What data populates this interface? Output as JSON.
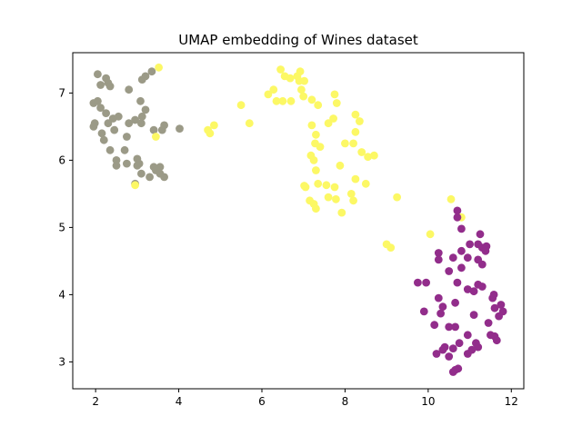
{
  "chart_data": {
    "type": "scatter",
    "title": "UMAP embedding of Wines dataset",
    "xlabel": "",
    "ylabel": "",
    "xlim": [
      1.45,
      12.3
    ],
    "ylim": [
      2.6,
      7.6
    ],
    "xticks": [
      2,
      4,
      6,
      8,
      10,
      12
    ],
    "yticks": [
      3,
      4,
      5,
      6,
      7
    ],
    "grid": false,
    "legend": "none",
    "series": [
      {
        "color": "#9b9a87",
        "points": [
          [
            1.95,
            6.85
          ],
          [
            2.05,
            6.88
          ],
          [
            2.12,
            6.78
          ],
          [
            1.98,
            6.55
          ],
          [
            1.95,
            6.5
          ],
          [
            2.05,
            7.28
          ],
          [
            2.25,
            7.22
          ],
          [
            2.3,
            7.15
          ],
          [
            2.12,
            7.12
          ],
          [
            2.35,
            7.1
          ],
          [
            2.8,
            7.05
          ],
          [
            3.2,
            7.25
          ],
          [
            3.12,
            7.2
          ],
          [
            3.35,
            7.32
          ],
          [
            3.08,
            6.88
          ],
          [
            3.2,
            6.75
          ],
          [
            3.12,
            6.65
          ],
          [
            2.95,
            6.6
          ],
          [
            2.8,
            6.55
          ],
          [
            2.55,
            6.65
          ],
          [
            2.42,
            6.62
          ],
          [
            2.25,
            6.7
          ],
          [
            2.3,
            6.55
          ],
          [
            2.45,
            6.45
          ],
          [
            2.15,
            6.4
          ],
          [
            2.2,
            6.3
          ],
          [
            2.75,
            6.35
          ],
          [
            3.1,
            6.55
          ],
          [
            3.4,
            6.45
          ],
          [
            3.6,
            6.45
          ],
          [
            3.65,
            6.52
          ],
          [
            4.02,
            6.47
          ],
          [
            2.35,
            6.15
          ],
          [
            2.7,
            6.15
          ],
          [
            2.5,
            6.0
          ],
          [
            2.5,
            5.92
          ],
          [
            2.75,
            5.95
          ],
          [
            3.0,
            6.02
          ],
          [
            3.0,
            5.92
          ],
          [
            3.05,
            5.95
          ],
          [
            3.4,
            5.9
          ],
          [
            3.55,
            5.9
          ],
          [
            3.45,
            5.85
          ],
          [
            3.55,
            5.8
          ],
          [
            3.1,
            5.8
          ],
          [
            3.3,
            5.75
          ],
          [
            3.65,
            5.75
          ],
          [
            2.95,
            5.65
          ]
        ]
      },
      {
        "color": "#fcf865",
        "points": [
          [
            3.52,
            7.38
          ],
          [
            3.45,
            6.35
          ],
          [
            2.95,
            5.63
          ],
          [
            4.7,
            6.45
          ],
          [
            4.75,
            6.4
          ],
          [
            4.85,
            6.52
          ],
          [
            5.5,
            6.82
          ],
          [
            5.7,
            6.55
          ],
          [
            6.15,
            6.98
          ],
          [
            6.28,
            7.05
          ],
          [
            6.35,
            6.88
          ],
          [
            6.5,
            6.88
          ],
          [
            6.45,
            7.35
          ],
          [
            6.55,
            7.25
          ],
          [
            6.68,
            7.22
          ],
          [
            6.85,
            7.25
          ],
          [
            6.9,
            7.18
          ],
          [
            6.7,
            6.88
          ],
          [
            6.95,
            7.05
          ],
          [
            7.0,
            6.95
          ],
          [
            6.92,
            7.32
          ],
          [
            7.02,
            7.18
          ],
          [
            7.2,
            6.9
          ],
          [
            7.35,
            6.82
          ],
          [
            7.2,
            6.52
          ],
          [
            7.3,
            6.38
          ],
          [
            7.28,
            6.25
          ],
          [
            7.4,
            6.2
          ],
          [
            7.6,
            6.55
          ],
          [
            7.72,
            6.62
          ],
          [
            7.75,
            6.98
          ],
          [
            7.8,
            6.85
          ],
          [
            8.25,
            6.68
          ],
          [
            8.35,
            6.58
          ],
          [
            8.25,
            6.42
          ],
          [
            8.2,
            6.25
          ],
          [
            8.0,
            6.25
          ],
          [
            8.4,
            6.12
          ],
          [
            8.55,
            6.05
          ],
          [
            8.7,
            6.07
          ],
          [
            7.18,
            6.07
          ],
          [
            7.25,
            6.0
          ],
          [
            7.3,
            5.85
          ],
          [
            7.88,
            5.92
          ],
          [
            8.25,
            5.72
          ],
          [
            8.5,
            5.65
          ],
          [
            7.35,
            5.65
          ],
          [
            7.55,
            5.63
          ],
          [
            7.75,
            5.6
          ],
          [
            7.05,
            5.6
          ],
          [
            7.02,
            5.62
          ],
          [
            7.15,
            5.4
          ],
          [
            7.25,
            5.35
          ],
          [
            7.3,
            5.28
          ],
          [
            7.6,
            5.45
          ],
          [
            7.78,
            5.42
          ],
          [
            8.15,
            5.5
          ],
          [
            8.2,
            5.4
          ],
          [
            7.92,
            5.22
          ],
          [
            9.25,
            5.45
          ],
          [
            9.0,
            4.75
          ],
          [
            9.1,
            4.7
          ],
          [
            10.05,
            4.9
          ],
          [
            10.55,
            5.42
          ],
          [
            10.8,
            5.15
          ]
        ]
      },
      {
        "color": "#922d8b",
        "points": [
          [
            10.7,
            5.25
          ],
          [
            10.7,
            5.15
          ],
          [
            10.8,
            4.98
          ],
          [
            11.25,
            4.9
          ],
          [
            11.0,
            4.75
          ],
          [
            11.2,
            4.75
          ],
          [
            11.3,
            4.7
          ],
          [
            11.4,
            4.72
          ],
          [
            11.38,
            4.65
          ],
          [
            10.8,
            4.65
          ],
          [
            10.25,
            4.62
          ],
          [
            10.6,
            4.55
          ],
          [
            10.95,
            4.55
          ],
          [
            10.25,
            4.52
          ],
          [
            11.2,
            4.52
          ],
          [
            11.3,
            4.45
          ],
          [
            10.8,
            4.4
          ],
          [
            10.5,
            4.35
          ],
          [
            9.75,
            4.18
          ],
          [
            9.95,
            4.18
          ],
          [
            10.7,
            4.18
          ],
          [
            11.2,
            4.15
          ],
          [
            11.3,
            4.12
          ],
          [
            10.95,
            4.08
          ],
          [
            11.1,
            4.05
          ],
          [
            11.58,
            4.0
          ],
          [
            11.55,
            3.95
          ],
          [
            10.25,
            3.95
          ],
          [
            10.65,
            3.88
          ],
          [
            10.35,
            3.82
          ],
          [
            11.75,
            3.85
          ],
          [
            11.6,
            3.8
          ],
          [
            11.8,
            3.75
          ],
          [
            9.9,
            3.75
          ],
          [
            10.3,
            3.72
          ],
          [
            11.1,
            3.7
          ],
          [
            11.7,
            3.68
          ],
          [
            10.15,
            3.55
          ],
          [
            10.65,
            3.52
          ],
          [
            10.5,
            3.52
          ],
          [
            10.95,
            3.4
          ],
          [
            11.45,
            3.58
          ],
          [
            11.5,
            3.4
          ],
          [
            11.6,
            3.38
          ],
          [
            11.65,
            3.32
          ],
          [
            10.75,
            3.28
          ],
          [
            11.15,
            3.28
          ],
          [
            11.2,
            3.22
          ],
          [
            10.6,
            3.2
          ],
          [
            10.4,
            3.22
          ],
          [
            10.35,
            3.18
          ],
          [
            10.95,
            3.12
          ],
          [
            11.05,
            3.18
          ],
          [
            10.2,
            3.12
          ],
          [
            10.5,
            3.08
          ],
          [
            10.72,
            2.9
          ],
          [
            10.65,
            2.88
          ],
          [
            10.6,
            2.85
          ]
        ]
      }
    ]
  }
}
